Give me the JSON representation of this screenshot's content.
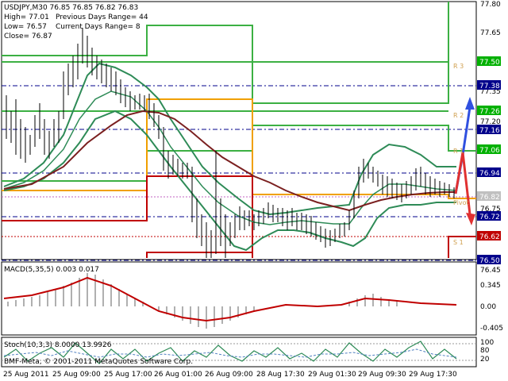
{
  "header": {
    "symbol_line": "USDJPY,M30  76.85 76.85 76.82 76.83",
    "high": "High= 77.01",
    "low": "Low= 76.57",
    "close": "Close= 76.87",
    "prev_range": "Previous Days Range= 44",
    "curr_range": "Current Days Range= 8"
  },
  "main_axis": {
    "labels": [
      "77.80",
      "77.65",
      "77.50",
      "77.35",
      "77.20",
      "77.05",
      "76.90",
      "76.75",
      "76.60",
      "76.45"
    ],
    "value_labels": [
      {
        "text": "77.50",
        "color": "#00b000"
      },
      {
        "text": "77.38",
        "color": "#00008b"
      },
      {
        "text": "77.26",
        "color": "#00b000"
      },
      {
        "text": "77.16",
        "color": "#00008b"
      },
      {
        "text": "77.06",
        "color": "#00b000"
      },
      {
        "text": "76.94",
        "color": "#00008b"
      },
      {
        "text": "76.82",
        "color": "#c0c0c0"
      },
      {
        "text": "76.72",
        "color": "#00008b"
      },
      {
        "text": "76.62",
        "color": "#c00000"
      },
      {
        "text": "76.50",
        "color": "#00008b"
      }
    ]
  },
  "pivot_labels": {
    "r3": "R 3",
    "r2": "R 2",
    "r1": "R 1",
    "pivot": "Pivot",
    "s1": "S 1"
  },
  "macd": {
    "label": "MACD(5,35,5) 0.003 0.017",
    "axis": [
      "0.345",
      "0.00",
      "-0.405"
    ]
  },
  "stoch": {
    "label": "Stoch(10,3,3) 8.0000 13.9926",
    "axis": [
      "100",
      "80",
      "20",
      "0"
    ]
  },
  "footer": {
    "copyright": "BMF-Meta, © 2001-2011 MetaQuotes Software Corp.",
    "times": [
      "25 Aug 2011",
      "25 Aug 09:00",
      "25 Aug 17:00",
      "26 Aug 01:00",
      "26 Aug 09:00",
      "28 Aug 17:30",
      "29 Aug 01:30",
      "29 Aug 09:30",
      "29 Aug 17:30"
    ]
  },
  "colors": {
    "green": "#00b000",
    "orange": "#f0a000",
    "red": "#c00000",
    "navy": "#00008b",
    "brown": "#7b2020",
    "blue_arrow": "#3050e0"
  }
}
